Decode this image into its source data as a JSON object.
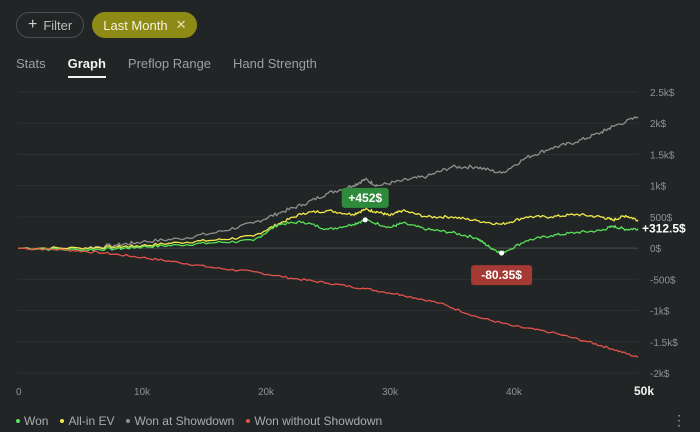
{
  "filters": {
    "filter_label": "Filter",
    "active_label": "Last Month"
  },
  "tabs": [
    "Stats",
    "Graph",
    "Preflop Range",
    "Hand Strength"
  ],
  "colors": {
    "won": "#58e05a",
    "allin_ev": "#f2ea4a",
    "showdown": "#8f8f8f",
    "without_showdown": "#e1524a",
    "positive_badge": "#2f8b3b",
    "negative_badge": "#a53a35"
  },
  "chart_data": {
    "type": "line",
    "x_range": [
      0,
      50000
    ],
    "y_range": [
      -2000,
      2500
    ],
    "x_ticks": [
      "0",
      "10k",
      "20k",
      "30k",
      "40k",
      "50k"
    ],
    "y_ticks": [
      "2.5k$",
      "2k$",
      "1.5k$",
      "1k$",
      "500$",
      "0$",
      "-500$",
      "-1k$",
      "-1.5k$",
      "-2k$"
    ],
    "series": [
      {
        "name": "Won at Showdown",
        "color": "#8f8f8f",
        "x": [
          0,
          5000,
          8000,
          10000,
          13000,
          16000,
          19000,
          21000,
          23000,
          25000,
          27000,
          28000,
          29000,
          31000,
          33000,
          35000,
          37000,
          39000,
          41000,
          43000,
          45000,
          47000,
          48000,
          50000
        ],
        "y": [
          0,
          0,
          50,
          100,
          150,
          250,
          400,
          560,
          700,
          880,
          1000,
          1100,
          1000,
          1080,
          1150,
          1300,
          1300,
          1200,
          1450,
          1600,
          1700,
          1850,
          1950,
          2100
        ]
      },
      {
        "name": "All-in EV",
        "color": "#f2ea4a",
        "x": [
          0,
          5000,
          8000,
          10000,
          13000,
          16000,
          19000,
          21000,
          23000,
          25000,
          27000,
          28000,
          29000,
          30000,
          31000,
          33000,
          35000,
          37000,
          39000,
          41000,
          43000,
          45000,
          47000,
          48000,
          49000,
          50000
        ],
        "y": [
          0,
          0,
          20,
          40,
          90,
          130,
          190,
          390,
          560,
          600,
          540,
          620,
          580,
          520,
          600,
          500,
          500,
          440,
          380,
          500,
          500,
          540,
          500,
          450,
          520,
          450
        ]
      },
      {
        "name": "Won",
        "color": "#58e05a",
        "x": [
          0,
          5000,
          8000,
          10000,
          13000,
          16000,
          19000,
          21000,
          23000,
          25000,
          27000,
          28000,
          30000,
          31000,
          33000,
          35000,
          37000,
          38000,
          39000,
          41000,
          43000,
          45000,
          47000,
          48000,
          49000,
          50000
        ],
        "y": [
          0,
          -30,
          -10,
          20,
          50,
          90,
          120,
          380,
          420,
          300,
          380,
          452,
          330,
          400,
          300,
          250,
          160,
          20,
          -80.35,
          120,
          200,
          250,
          280,
          350,
          300,
          312.5
        ]
      },
      {
        "name": "Won without Showdown",
        "color": "#e1524a",
        "x": [
          0,
          4000,
          7000,
          10000,
          13000,
          16000,
          19000,
          22000,
          25000,
          28000,
          31000,
          34000,
          37000,
          40000,
          43000,
          46000,
          48000,
          50000
        ],
        "y": [
          0,
          -30,
          -80,
          -150,
          -230,
          -320,
          -380,
          -480,
          -560,
          -650,
          -750,
          -880,
          -1100,
          -1250,
          -1350,
          -1500,
          -1620,
          -1750
        ]
      }
    ],
    "annotations": {
      "peak_label": "+452$",
      "trough_label": "-80.35$",
      "final_label": "+312.5$"
    },
    "legend": {
      "placement": "bottom-left",
      "entries": [
        "Won",
        "All-in EV",
        "Won at Showdown",
        "Won without Showdown"
      ]
    },
    "grid": true
  }
}
